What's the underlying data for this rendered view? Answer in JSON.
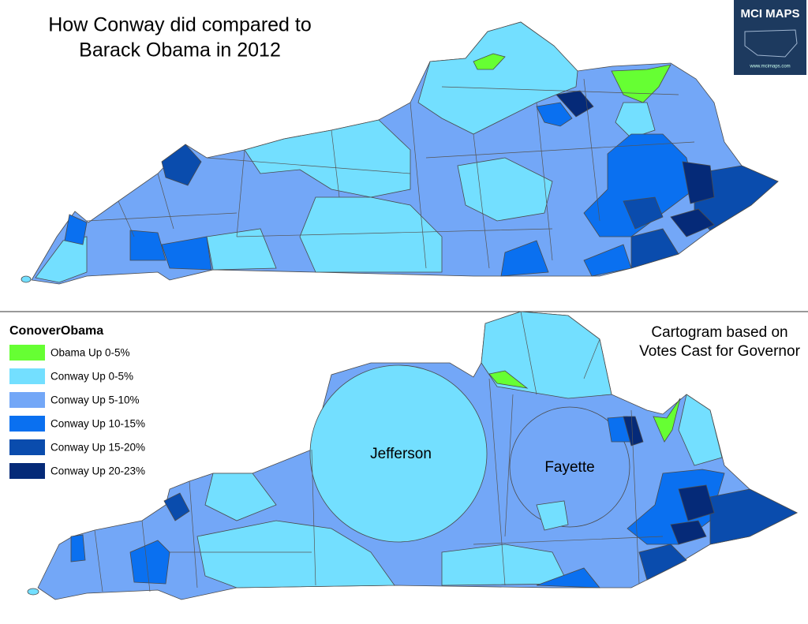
{
  "title": [
    "How Conway did compared to",
    "Barack Obama in 2012"
  ],
  "note": [
    "Cartogram based on",
    "Votes Cast for Governor"
  ],
  "labels": [
    "Jefferson",
    "Fayette"
  ],
  "logo": {
    "name": "MCI MAPS",
    "url": "www.mcimaps.com"
  },
  "legend": {
    "title": "ConoverObama",
    "items": [
      {
        "label": "Obama Up 0-5%",
        "color": "#66ff33"
      },
      {
        "label": "Conway Up 0-5%",
        "color": "#73dfff"
      },
      {
        "label": "Conway Up 5-10%",
        "color": "#73a7f7"
      },
      {
        "label": "Conway Up 10-15%",
        "color": "#0a70f0"
      },
      {
        "label": "Conway Up 15-20%",
        "color": "#0a4cad"
      },
      {
        "label": "Conway Up 20-23%",
        "color": "#052a78"
      }
    ]
  }
}
